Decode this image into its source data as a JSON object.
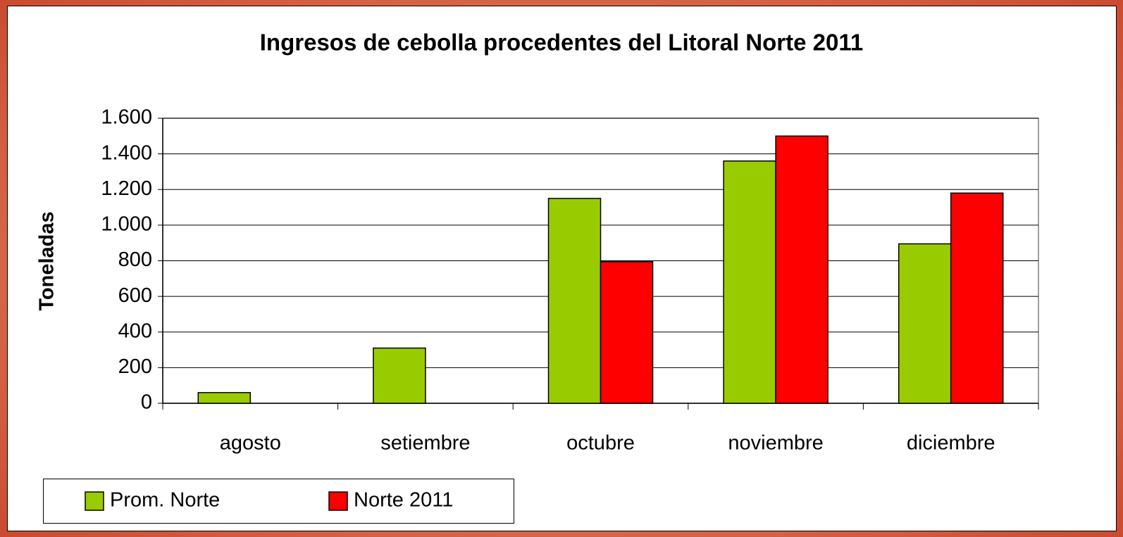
{
  "chart_data": {
    "type": "bar",
    "title": "Ingresos de cebolla procedentes del Litoral Norte 2011",
    "y_label": "Toneladas",
    "categories": [
      "agosto",
      "setiembre",
      "octubre",
      "noviembre",
      "diciembre"
    ],
    "series": [
      {
        "name": "Prom. Norte",
        "color": "#99cc00",
        "values": [
          60,
          310,
          1150,
          1360,
          895
        ]
      },
      {
        "name": "Norte 2011",
        "color": "#ff0000",
        "values": [
          null,
          null,
          795,
          1500,
          1180
        ]
      }
    ],
    "ylim": [
      0,
      1600
    ],
    "yticks": [
      0,
      200,
      400,
      600,
      800,
      {
        "value": 1000,
        "label": "1.000"
      },
      {
        "value": 1200,
        "label": "1.200"
      },
      {
        "value": 1400,
        "label": "1.400"
      },
      {
        "value": 1600,
        "label": "1.600"
      }
    ],
    "grid": true,
    "legend": "bottom-left"
  }
}
